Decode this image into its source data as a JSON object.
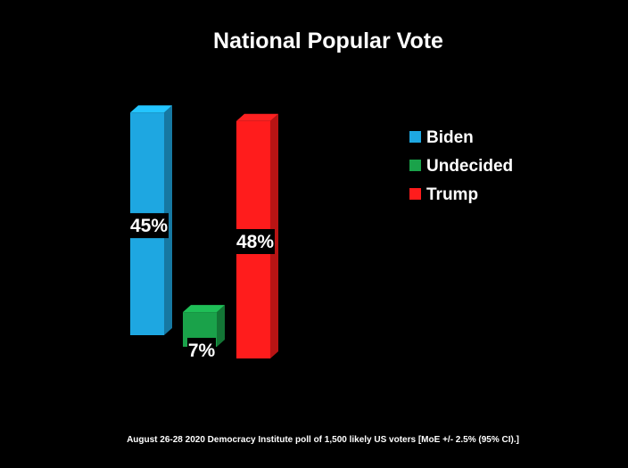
{
  "chart_data": {
    "type": "bar",
    "title": "National Popular Vote",
    "categories": [
      "Biden",
      "Undecided",
      "Trump"
    ],
    "values": [
      45,
      7,
      48
    ],
    "data_labels": [
      "45%",
      "7%",
      "48%"
    ],
    "colors": [
      "#1ea7e1",
      "#1aa24a",
      "#ff1c1c"
    ],
    "legend": {
      "position": "right",
      "entries": [
        "Biden",
        "Undecided",
        "Trump"
      ]
    },
    "style": "3d",
    "grid": false,
    "xlabel": "",
    "ylabel": "",
    "ylim": [
      0,
      50
    ]
  },
  "footer": "August 26-28 2020 Democracy Institute poll of 1,500 likely US voters [MoE +/- 2.5% (95% CI).]"
}
